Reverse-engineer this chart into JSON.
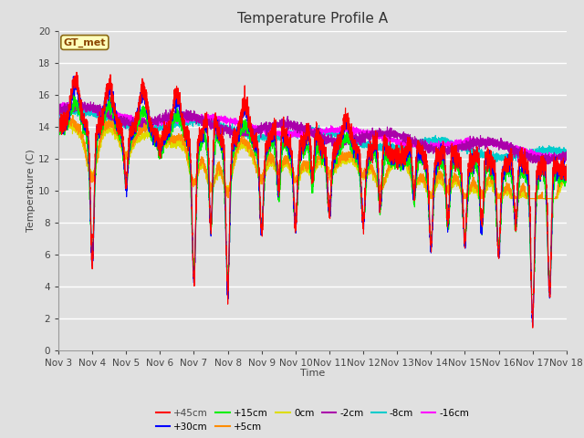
{
  "title": "Temperature Profile A",
  "xlabel": "Time",
  "ylabel": "Temperature (C)",
  "ylim": [
    0,
    20
  ],
  "xlim": [
    0,
    15
  ],
  "annotation": "GT_met",
  "x_tick_labels": [
    "Nov 3",
    "Nov 4",
    "Nov 5",
    "Nov 6",
    "Nov 7",
    "Nov 8",
    "Nov 9",
    "Nov 10",
    "Nov 11",
    "Nov 12",
    "Nov 13",
    "Nov 14",
    "Nov 15",
    "Nov 16",
    "Nov 17",
    "Nov 18"
  ],
  "series": [
    {
      "label": "+45cm",
      "color": "#FF0000"
    },
    {
      "label": "+30cm",
      "color": "#0000FF"
    },
    {
      "label": "+15cm",
      "color": "#00EE00"
    },
    {
      "label": "+5cm",
      "color": "#FF8C00"
    },
    {
      "label": "0cm",
      "color": "#DDDD00"
    },
    {
      "label": "-2cm",
      "color": "#AA00AA"
    },
    {
      "label": "-8cm",
      "color": "#00CCCC"
    },
    {
      "label": "-16cm",
      "color": "#FF00FF"
    }
  ],
  "bg_color": "#E0E0E0",
  "plot_bg_color": "#E0E0E0",
  "grid_color": "#FFFFFF",
  "title_fontsize": 11,
  "label_fontsize": 8,
  "tick_fontsize": 7.5
}
